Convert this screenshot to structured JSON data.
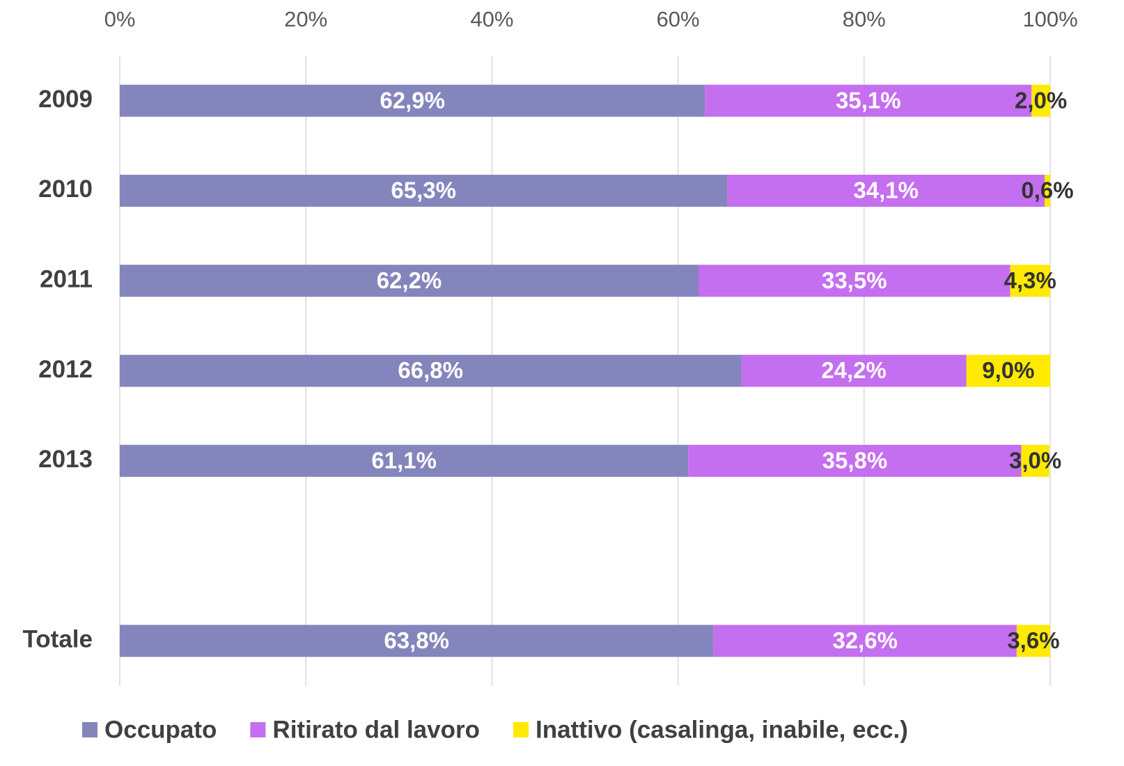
{
  "chart_data": {
    "type": "stacked_bar_horizontal",
    "categories": [
      "2009",
      "2010",
      "2011",
      "2012",
      "2013",
      null,
      "Totale"
    ],
    "series": [
      {
        "name": "Occupato",
        "color": "#8585bd",
        "values": [
          62.9,
          65.3,
          62.2,
          66.8,
          61.1,
          null,
          63.8
        ],
        "value_labels": [
          "62,9%",
          "65,3%",
          "62,2%",
          "66,8%",
          "61,1%",
          null,
          "63,8%"
        ]
      },
      {
        "name": "Ritirato dal lavoro",
        "color": "#c46ef0",
        "values": [
          35.1,
          34.1,
          33.5,
          24.2,
          35.8,
          null,
          32.6
        ],
        "value_labels": [
          "35,1%",
          "34,1%",
          "33,5%",
          "24,2%",
          "35,8%",
          null,
          "32,6%"
        ]
      },
      {
        "name": "Inattivo (casalinga, inabile, ecc.)",
        "color": "#ffea00",
        "values": [
          2.0,
          0.6,
          4.3,
          9.0,
          3.0,
          null,
          3.6
        ],
        "value_labels": [
          "2,0%",
          "0,6%",
          "4,3%",
          "9,0%",
          "3,0%",
          null,
          "3,6%"
        ]
      }
    ],
    "xlim": [
      0,
      100
    ],
    "xticks": [
      {
        "value": 0,
        "label": "0%"
      },
      {
        "value": 20,
        "label": "20%"
      },
      {
        "value": 40,
        "label": "40%"
      },
      {
        "value": 60,
        "label": "60%"
      },
      {
        "value": 80,
        "label": "80%"
      },
      {
        "value": 100,
        "label": "100%"
      }
    ],
    "grid": true,
    "legend": "bottom"
  }
}
